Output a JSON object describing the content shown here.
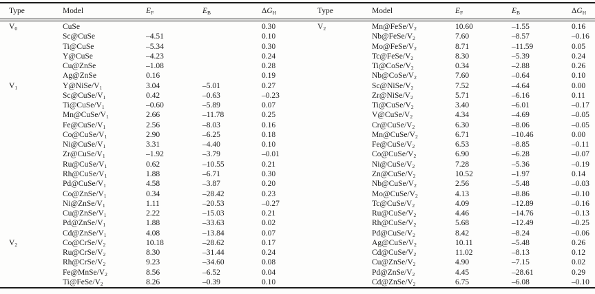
{
  "table": {
    "headers": [
      {
        "plain": "Type",
        "italic": "",
        "sub": ""
      },
      {
        "plain": "Model",
        "italic": "",
        "sub": ""
      },
      {
        "plain": "",
        "italic": "E",
        "sub": "F"
      },
      {
        "plain": "",
        "italic": "E",
        "sub": "B"
      },
      {
        "plain": "Δ",
        "italic": "G",
        "sub": "H"
      }
    ],
    "left_rows": [
      [
        "V_0",
        "CuSe",
        "",
        "",
        "0.30"
      ],
      [
        "",
        "Sc@CuSe",
        "–4.51",
        "",
        "0.10"
      ],
      [
        "",
        "Ti@CuSe",
        "–5.34",
        "",
        "0.30"
      ],
      [
        "",
        "Y@CuSe",
        "–4.23",
        "",
        "0.24"
      ],
      [
        "",
        "Cu@ZnSe",
        "–1.08",
        "",
        "0.28"
      ],
      [
        "",
        "Ag@ZnSe",
        "0.16",
        "",
        "0.19"
      ],
      [
        "V_1",
        "Y@NiSe/V_1",
        "3.04",
        "–5.01",
        "0.27"
      ],
      [
        "",
        "Sc@CuSe/V_1",
        "0.42",
        "–0.63",
        "–0.23"
      ],
      [
        "",
        "Ti@CuSe/V_1",
        "–0.60",
        "–5.89",
        "0.07"
      ],
      [
        "",
        "Mn@CuSe/V_1",
        "2.66",
        "–11.78",
        "0.25"
      ],
      [
        "",
        "Fe@CuSe/V_1",
        "2.56",
        "–8.03",
        "0.16"
      ],
      [
        "",
        "Co@CuSe/V_1",
        "2.90",
        "–6.25",
        "0.18"
      ],
      [
        "",
        "Ni@CuSe/V_1",
        "3.31",
        "–4.40",
        "0.10"
      ],
      [
        "",
        "Zr@CuSe/V_1",
        "–1.92",
        "–3.79",
        "–0.01"
      ],
      [
        "",
        "Ru@CuSe/V_1",
        "0.62",
        "–10.55",
        "0.21"
      ],
      [
        "",
        "Rh@CuSe/V_1",
        "1.88",
        "–6.71",
        "0.30"
      ],
      [
        "",
        "Pd@CuSe/V_1",
        "4.58",
        "–3.87",
        "0.20"
      ],
      [
        "",
        "Co@ZnSe/V_1",
        "0.34",
        "–28.42",
        "0.23"
      ],
      [
        "",
        "Ni@ZnSe/V_1",
        "1.11",
        "–20.53",
        "–0.27"
      ],
      [
        "",
        "Cu@ZnSe/V_1",
        "2.22",
        "–15.03",
        "0.21"
      ],
      [
        "",
        "Pd@ZnSe/V_1",
        "1.88",
        "–33.63",
        "0.02"
      ],
      [
        "",
        "Cd@ZnSe/V_1",
        "4.08",
        "–13.84",
        "0.07"
      ],
      [
        "V_2",
        "Co@CrSe/V_2",
        "10.18",
        "–28.62",
        "0.17"
      ],
      [
        "",
        "Ru@CrSe/V_2",
        "8.30",
        "–31.44",
        "0.24"
      ],
      [
        "",
        "Rh@CrSe/V_2",
        "9.23",
        "–34.60",
        "0.08"
      ],
      [
        "",
        "Fe@MnSe/V_2",
        "8.56",
        "–6.52",
        "0.04"
      ],
      [
        "",
        "Ti@FeSe/V_2",
        "8.26",
        "–0.39",
        "0.10"
      ]
    ],
    "right_rows": [
      [
        "V_2",
        "Mn@FeSe/V_2",
        "10.60",
        "–1.55",
        "0.16"
      ],
      [
        "",
        "Nb@FeSe/V_2",
        "7.60",
        "–8.57",
        "–0.16"
      ],
      [
        "",
        "Mo@FeSe/V_2",
        "8.71",
        "–11.59",
        "0.05"
      ],
      [
        "",
        "Tc@FeSe/V_2",
        "8.30",
        "–5.39",
        "0.24"
      ],
      [
        "",
        "Ti@CoSe/V_2",
        "0.34",
        "–2.88",
        "0.26"
      ],
      [
        "",
        "Nb@CoSe/V_2",
        "7.60",
        "–0.64",
        "0.10"
      ],
      [
        "",
        "Sc@NiSe/V_2",
        "7.52",
        "–4.64",
        "0.00"
      ],
      [
        "",
        "Zr@NiSe/V_2",
        "5.71",
        "–6.16",
        "0.11"
      ],
      [
        "",
        "Ti@CuSe/V_2",
        "3.40",
        "–6.01",
        "–0.17"
      ],
      [
        "",
        "V@CuSe/V_2",
        "4.34",
        "–4.69",
        "–0.05"
      ],
      [
        "",
        "Cr@CuSe/V_2",
        "6.30",
        "–8.06",
        "–0.05"
      ],
      [
        "",
        "Mn@CuSe/V_2",
        "6.71",
        "–10.46",
        "0.00"
      ],
      [
        "",
        "Fe@CuSe/V_2",
        "6.53",
        "–8.85",
        "–0.11"
      ],
      [
        "",
        "Co@CuSe/V_2",
        "6.90",
        "–6.28",
        "–0.07"
      ],
      [
        "",
        "Ni@CuSe/V_2",
        "7.28",
        "–5.36",
        "–0.19"
      ],
      [
        "",
        "Zn@CuSe/V_2",
        "10.52",
        "–1.97",
        "0.14"
      ],
      [
        "",
        "Nb@CuSe/V_2",
        "2.56",
        "–5.48",
        "–0.03"
      ],
      [
        "",
        "Mo@CuSe/V_2",
        "4.13",
        "–8.86",
        "–0.10"
      ],
      [
        "",
        "Tc@CuSe/V_2",
        "4.09",
        "–12.89",
        "–0.16"
      ],
      [
        "",
        "Ru@CuSe/V_2",
        "4.46",
        "–14.76",
        "–0.13"
      ],
      [
        "",
        "Rh@CuSe/V_2",
        "5.68",
        "–12.49",
        "–0.25"
      ],
      [
        "",
        "Pd@CuSe/V_2",
        "8.42",
        "–8.24",
        "–0.06"
      ],
      [
        "",
        "Ag@CuSe/V_2",
        "10.11",
        "–5.48",
        "0.26"
      ],
      [
        "",
        "Cd@CuSe/V_2",
        "11.02",
        "–8.13",
        "0.12"
      ],
      [
        "",
        "Cu@ZnSe/V_2",
        "4.90",
        "–7.15",
        "0.02"
      ],
      [
        "",
        "Pd@ZnSe/V_2",
        "4.45",
        "–28.61",
        "0.29"
      ],
      [
        "",
        "Cd@ZnSe/V_2",
        "6.75",
        "–6.08",
        "–0.10"
      ]
    ]
  },
  "colors": {
    "text": "#1c1c1c",
    "rule": "#1a1a1a",
    "background": "#fdfdfc"
  }
}
